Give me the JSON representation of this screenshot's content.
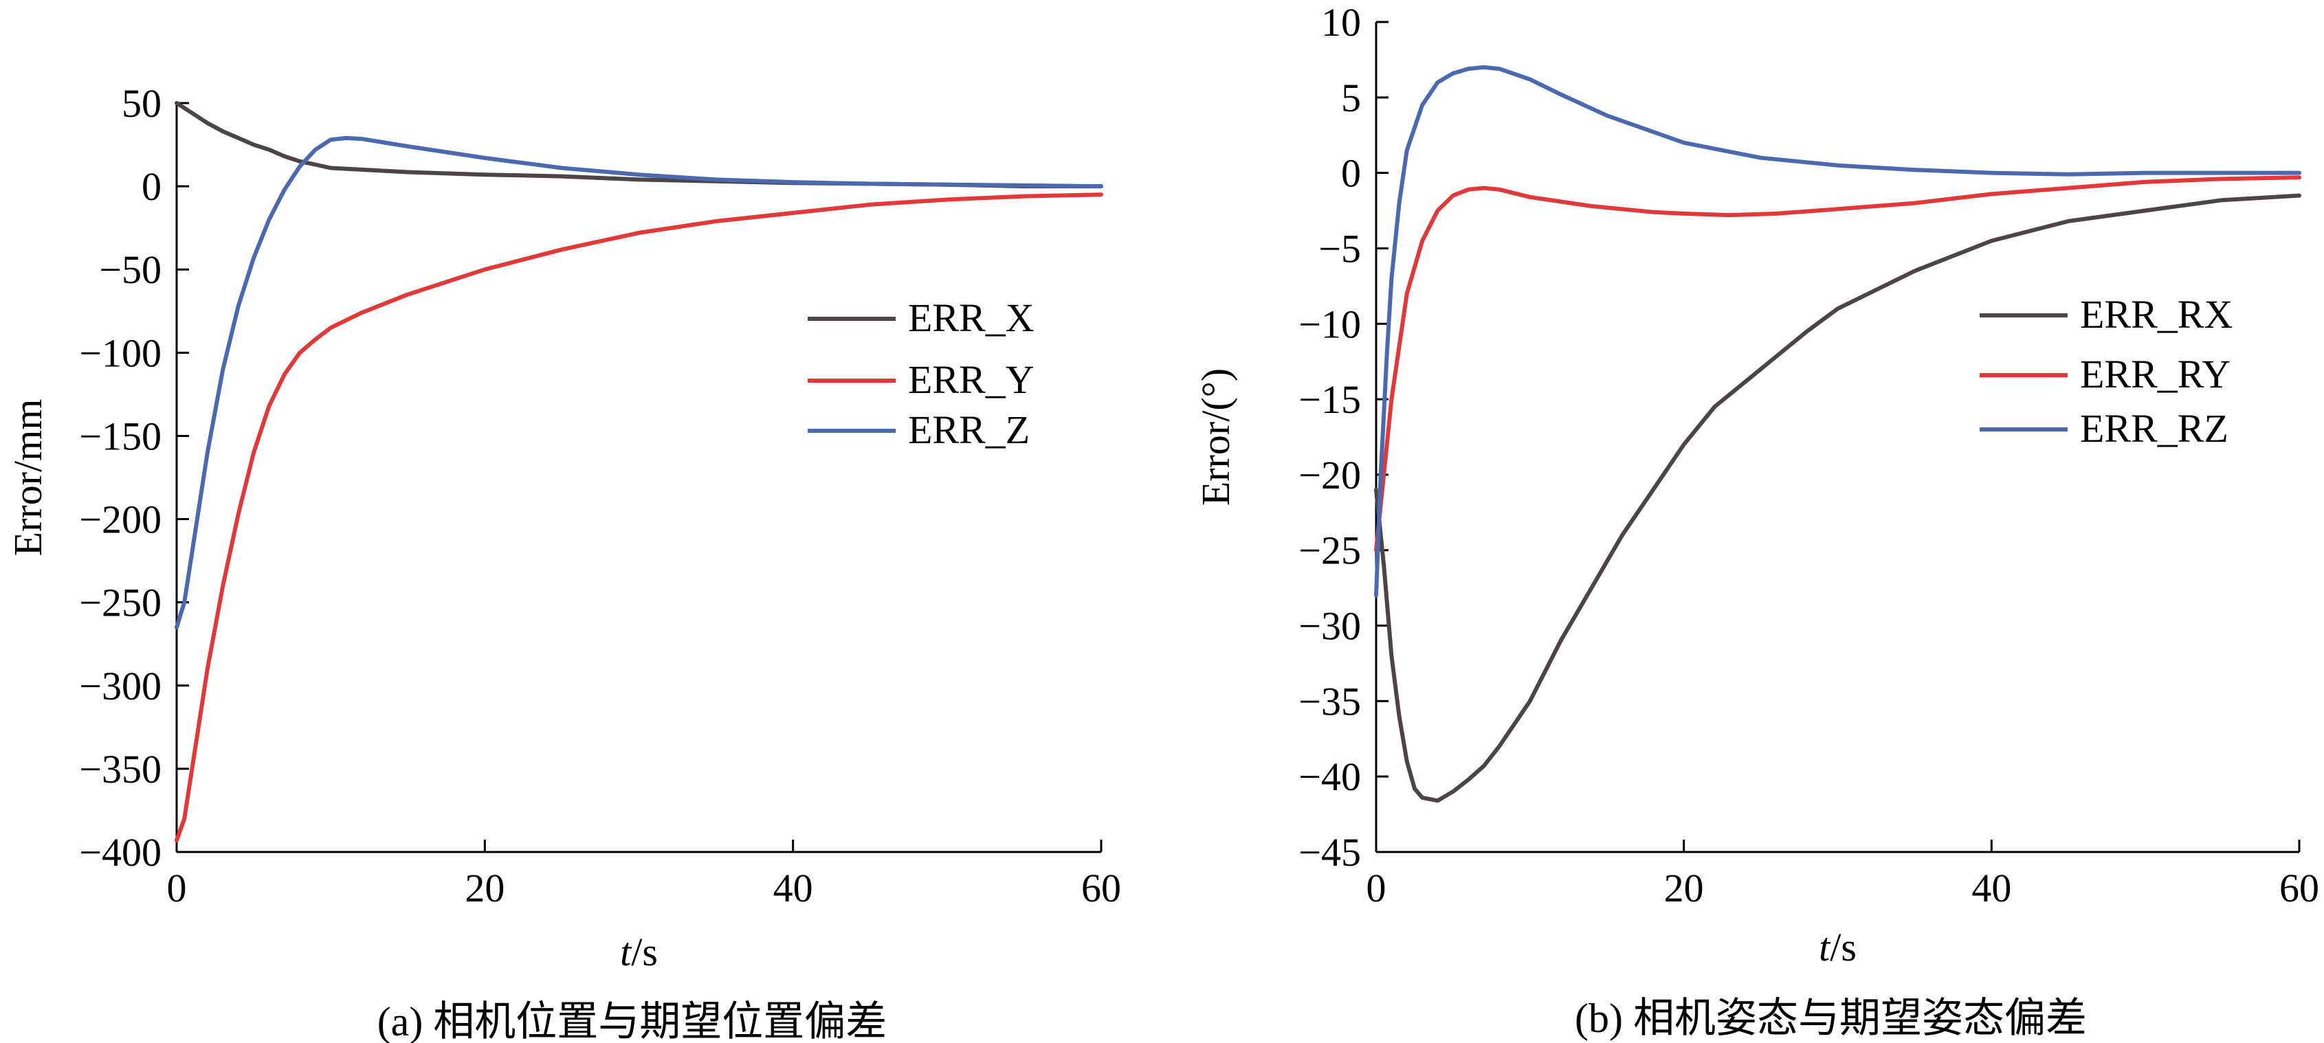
{
  "chart_data": [
    {
      "type": "line",
      "panel": "a",
      "caption": "(a) 相机位置与期望位置偏差",
      "xlabel_italic": "t",
      "xlabel_unit": "/s",
      "ylabel": "Error/mm",
      "xlim": [
        0,
        60
      ],
      "ylim": [
        -400,
        50
      ],
      "xticks": [
        0,
        20,
        40,
        60
      ],
      "yticks": [
        50,
        0,
        -50,
        -100,
        -150,
        -200,
        -250,
        -300,
        -350,
        -400
      ],
      "ytick_labels": [
        "50",
        "0",
        "−50",
        "−100",
        "−150",
        "−200",
        "−250",
        "−300",
        "−350",
        "−400"
      ],
      "grid": false,
      "legend_position": "right",
      "series": [
        {
          "name": "ERR_X",
          "color": "#4d4444",
          "points": [
            [
              0,
              50
            ],
            [
              1,
              44
            ],
            [
              2,
              38
            ],
            [
              3,
              33
            ],
            [
              4,
              29
            ],
            [
              5,
              25
            ],
            [
              6,
              22
            ],
            [
              7,
              18
            ],
            [
              8,
              15
            ],
            [
              9,
              13
            ],
            [
              10,
              11
            ],
            [
              12,
              10
            ],
            [
              15,
              8.5
            ],
            [
              20,
              7
            ],
            [
              25,
              6
            ],
            [
              30,
              4
            ],
            [
              35,
              3
            ],
            [
              40,
              2
            ],
            [
              45,
              1.5
            ],
            [
              50,
              1
            ],
            [
              55,
              0
            ],
            [
              60,
              0
            ]
          ]
        },
        {
          "name": "ERR_Y",
          "color": "#e2383a",
          "points": [
            [
              0,
              -393
            ],
            [
              0.5,
              -380
            ],
            [
              1,
              -350
            ],
            [
              2,
              -290
            ],
            [
              3,
              -240
            ],
            [
              4,
              -197
            ],
            [
              5,
              -160
            ],
            [
              6,
              -132
            ],
            [
              7,
              -113
            ],
            [
              8,
              -100
            ],
            [
              9,
              -92
            ],
            [
              10,
              -85
            ],
            [
              12,
              -76
            ],
            [
              15,
              -65
            ],
            [
              20,
              -50
            ],
            [
              25,
              -38
            ],
            [
              30,
              -28
            ],
            [
              35,
              -21
            ],
            [
              40,
              -16
            ],
            [
              45,
              -11
            ],
            [
              50,
              -8
            ],
            [
              55,
              -6
            ],
            [
              60,
              -5
            ]
          ]
        },
        {
          "name": "ERR_Z",
          "color": "#4b69b0",
          "points": [
            [
              0,
              -265
            ],
            [
              0.5,
              -250
            ],
            [
              1,
              -220
            ],
            [
              2,
              -160
            ],
            [
              3,
              -110
            ],
            [
              4,
              -72
            ],
            [
              5,
              -43
            ],
            [
              6,
              -20
            ],
            [
              7,
              -2
            ],
            [
              8,
              12
            ],
            [
              9,
              22
            ],
            [
              10,
              28
            ],
            [
              11,
              29
            ],
            [
              12,
              28.5
            ],
            [
              15,
              24
            ],
            [
              20,
              17
            ],
            [
              25,
              11
            ],
            [
              30,
              7
            ],
            [
              35,
              4
            ],
            [
              40,
              2.5
            ],
            [
              45,
              1.5
            ],
            [
              50,
              1
            ],
            [
              55,
              0.5
            ],
            [
              60,
              0
            ]
          ]
        }
      ]
    },
    {
      "type": "line",
      "panel": "b",
      "caption": "(b) 相机姿态与期望姿态偏差",
      "xlabel_italic": "t",
      "xlabel_unit": "/s",
      "ylabel": "Error/(°)",
      "xlim": [
        0,
        60
      ],
      "ylim": [
        -45,
        10
      ],
      "xticks": [
        0,
        20,
        40,
        60
      ],
      "yticks": [
        10,
        5,
        0,
        -5,
        -10,
        -15,
        -20,
        -25,
        -30,
        -35,
        -40,
        -45
      ],
      "ytick_labels": [
        "10",
        "5",
        "0",
        "−5",
        "−10",
        "−15",
        "−20",
        "−25",
        "−30",
        "−35",
        "−40",
        "−45"
      ],
      "grid": false,
      "legend_position": "right",
      "series": [
        {
          "name": "ERR_RX",
          "color": "#4d4444",
          "points": [
            [
              0,
              -21
            ],
            [
              0.5,
              -26
            ],
            [
              1,
              -32
            ],
            [
              1.5,
              -36
            ],
            [
              2,
              -39
            ],
            [
              2.5,
              -40.8
            ],
            [
              3,
              -41.4
            ],
            [
              4,
              -41.6
            ],
            [
              5,
              -41
            ],
            [
              6,
              -40.2
            ],
            [
              7,
              -39.3
            ],
            [
              8,
              -38
            ],
            [
              10,
              -35
            ],
            [
              12,
              -31
            ],
            [
              14,
              -27.5
            ],
            [
              16,
              -24
            ],
            [
              18,
              -21
            ],
            [
              20,
              -18
            ],
            [
              22,
              -15.5
            ],
            [
              25,
              -13
            ],
            [
              28,
              -10.5
            ],
            [
              30,
              -9
            ],
            [
              35,
              -6.5
            ],
            [
              40,
              -4.5
            ],
            [
              45,
              -3.2
            ],
            [
              50,
              -2.5
            ],
            [
              55,
              -1.8
            ],
            [
              60,
              -1.5
            ]
          ]
        },
        {
          "name": "ERR_RY",
          "color": "#e2383a",
          "points": [
            [
              0,
              -25
            ],
            [
              0.5,
              -20
            ],
            [
              1,
              -15
            ],
            [
              2,
              -8
            ],
            [
              3,
              -4.5
            ],
            [
              4,
              -2.5
            ],
            [
              5,
              -1.5
            ],
            [
              6,
              -1.1
            ],
            [
              7,
              -1
            ],
            [
              8,
              -1.1
            ],
            [
              10,
              -1.6
            ],
            [
              14,
              -2.2
            ],
            [
              18,
              -2.6
            ],
            [
              20,
              -2.7
            ],
            [
              23,
              -2.8
            ],
            [
              26,
              -2.7
            ],
            [
              30,
              -2.4
            ],
            [
              35,
              -2
            ],
            [
              40,
              -1.4
            ],
            [
              45,
              -1
            ],
            [
              50,
              -0.6
            ],
            [
              55,
              -0.4
            ],
            [
              60,
              -0.3
            ]
          ]
        },
        {
          "name": "ERR_RZ",
          "color": "#4b69b0",
          "points": [
            [
              0,
              -28
            ],
            [
              0.3,
              -20
            ],
            [
              0.7,
              -12
            ],
            [
              1,
              -7
            ],
            [
              1.5,
              -2
            ],
            [
              2,
              1.5
            ],
            [
              3,
              4.5
            ],
            [
              4,
              6
            ],
            [
              5,
              6.6
            ],
            [
              6,
              6.9
            ],
            [
              7,
              7
            ],
            [
              8,
              6.9
            ],
            [
              10,
              6.2
            ],
            [
              12,
              5.2
            ],
            [
              15,
              3.8
            ],
            [
              20,
              2
            ],
            [
              25,
              1
            ],
            [
              30,
              0.5
            ],
            [
              35,
              0.2
            ],
            [
              40,
              0
            ],
            [
              45,
              -0.1
            ],
            [
              50,
              0
            ],
            [
              55,
              0
            ],
            [
              60,
              0
            ]
          ]
        }
      ]
    }
  ]
}
